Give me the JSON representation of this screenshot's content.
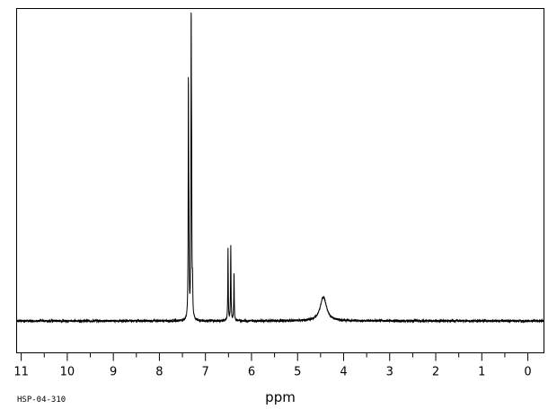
{
  "chart_data": {
    "type": "line",
    "title": "",
    "xlabel": "ppm",
    "ylabel": "",
    "xlim": [
      11.1,
      -0.35
    ],
    "ylim": [
      -0.12,
      1.0
    ],
    "x_reversed": true,
    "grid": false,
    "tick_values": [
      11,
      10,
      9,
      8,
      7,
      6,
      5,
      4,
      3,
      2,
      1,
      0
    ],
    "tick_labels": [
      "11",
      "10",
      "9",
      "8",
      "7",
      "6",
      "5",
      "4",
      "3",
      "2",
      "1",
      "0"
    ],
    "series": [
      {
        "name": "",
        "peaks": [
          {
            "ppm": 7.37,
            "intensity": 0.81,
            "width": 0.006
          },
          {
            "ppm": 7.36,
            "intensity": 0.22,
            "width": 0.006
          },
          {
            "ppm": 7.31,
            "intensity": 1.0,
            "width": 0.006
          },
          {
            "ppm": 7.3,
            "intensity": 0.41,
            "width": 0.006
          },
          {
            "ppm": 7.28,
            "intensity": 0.11,
            "width": 0.006
          },
          {
            "ppm": 6.51,
            "intensity": 0.25,
            "width": 0.006
          },
          {
            "ppm": 6.45,
            "intensity": 0.26,
            "width": 0.006
          },
          {
            "ppm": 6.38,
            "intensity": 0.17,
            "width": 0.006
          },
          {
            "ppm": 4.44,
            "intensity": 0.085,
            "width": 0.08
          }
        ]
      }
    ]
  },
  "footer": {
    "code": "HSP-04-310"
  }
}
